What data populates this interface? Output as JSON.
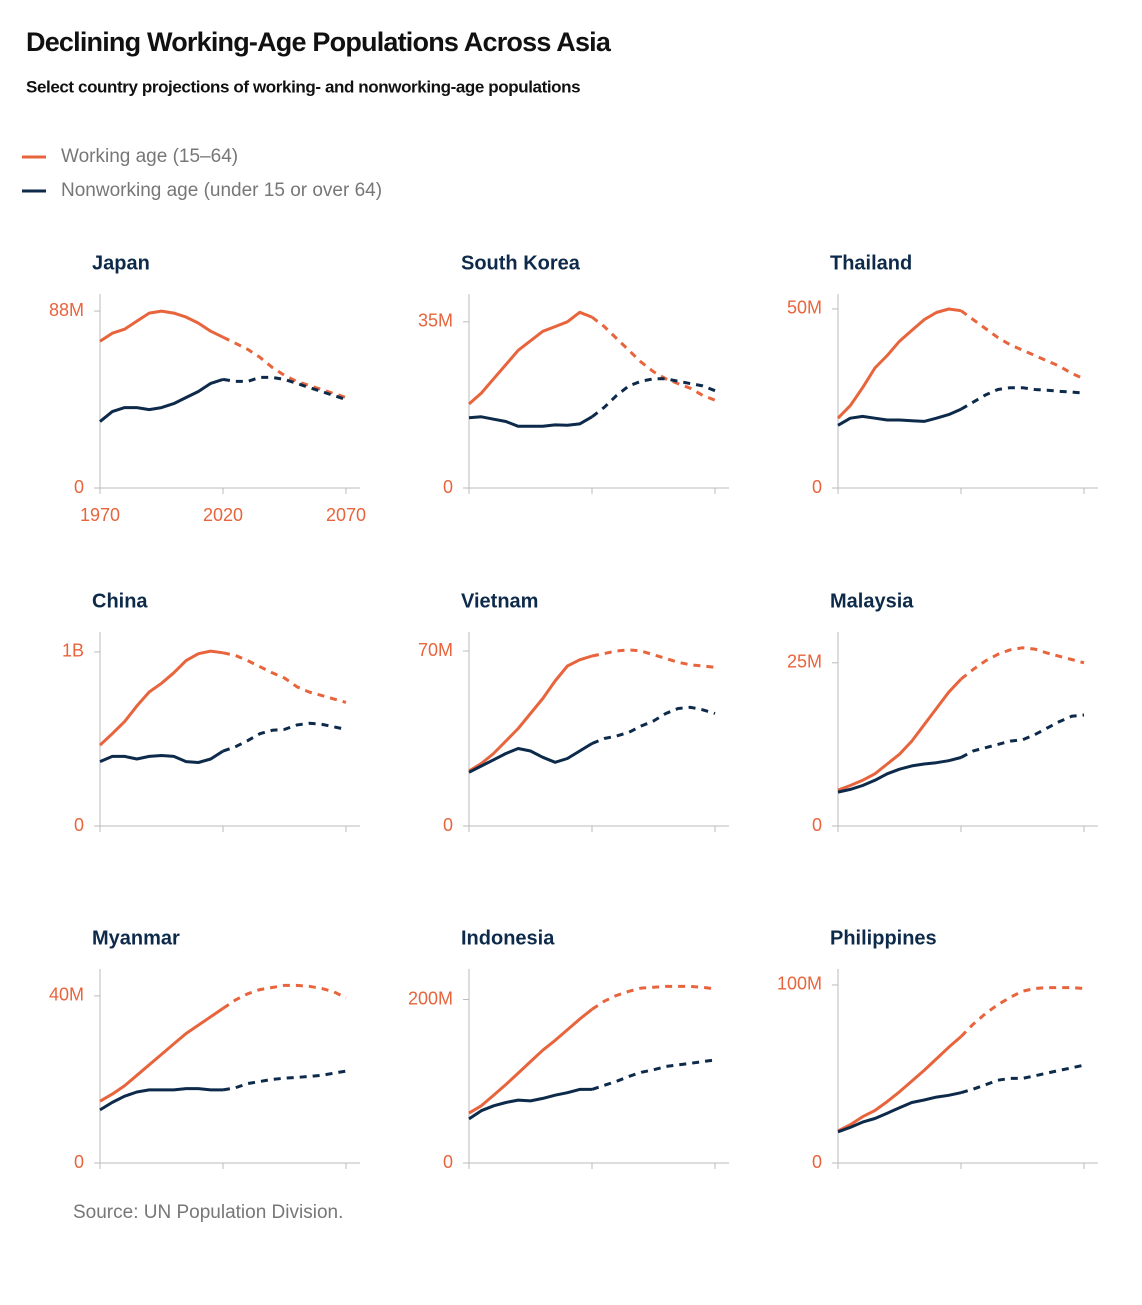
{
  "title": "Declining Working-Age Populations Across Asia",
  "subtitle": "Select country projections of working- and nonworking-age populations",
  "source": "Source: UN Population Division.",
  "chart_data": [
    {
      "type": "line",
      "title": "Japan",
      "projected_from": 2020,
      "xtick_labels": true,
      "x": [
        1970,
        1975,
        1980,
        1985,
        1990,
        1995,
        2000,
        2005,
        2010,
        2015,
        2020,
        2025,
        2030,
        2035,
        2040,
        2045,
        2050,
        2055,
        2060,
        2065,
        2070
      ],
      "xlim": [
        1970,
        2070
      ],
      "xticks": [
        1970,
        2020,
        2070
      ],
      "ylim": [
        0,
        93.5
      ],
      "yticks": [
        0,
        {
          "value": 88,
          "label": "88M"
        }
      ],
      "series": [
        {
          "name": "Working age (15–64)",
          "color": "#e8643c",
          "values": [
            73,
            77,
            79,
            83,
            87,
            88,
            87,
            85,
            82,
            78,
            75,
            72,
            69,
            65,
            60,
            56,
            53,
            51,
            49,
            47,
            45
          ]
        },
        {
          "name": "Nonworking age (under 15 or over 64)",
          "color": "#0d2a4a",
          "values": [
            33,
            38,
            40,
            40,
            39,
            40,
            42,
            45,
            48,
            52,
            54,
            53,
            53,
            55,
            55,
            54,
            52,
            50,
            48,
            46,
            44
          ]
        }
      ]
    },
    {
      "type": "line",
      "title": "South Korea",
      "projected_from": 2020,
      "x": [
        1970,
        1975,
        1980,
        1985,
        1990,
        1995,
        2000,
        2005,
        2010,
        2015,
        2020,
        2025,
        2030,
        2035,
        2040,
        2045,
        2050,
        2055,
        2060,
        2065,
        2070
      ],
      "xlim": [
        1970,
        2070
      ],
      "xticks": [
        1970,
        2020,
        2070
      ],
      "ylim": [
        0,
        39.6
      ],
      "yticks": [
        0,
        {
          "value": 35,
          "label": "35M"
        }
      ],
      "series": [
        {
          "color": "#e8643c",
          "values": [
            17.7,
            20,
            23,
            26,
            29,
            31,
            33,
            34,
            35,
            37,
            36,
            34,
            31.5,
            29,
            26.5,
            24.5,
            23,
            22,
            21,
            19.5,
            18.5
          ]
        },
        {
          "color": "#0d2a4a",
          "values": [
            14.8,
            15,
            14.5,
            14,
            13,
            13,
            13,
            13.3,
            13.2,
            13.5,
            15,
            17,
            19.5,
            21.5,
            22.5,
            23,
            23,
            22.5,
            22,
            21.5,
            20.5
          ]
        }
      ]
    },
    {
      "type": "line",
      "title": "Thailand",
      "projected_from": 2020,
      "x": [
        1970,
        1975,
        1980,
        1985,
        1990,
        1995,
        2000,
        2005,
        2010,
        2015,
        2020,
        2025,
        2030,
        2035,
        2040,
        2045,
        2050,
        2055,
        2060,
        2065,
        2070
      ],
      "xlim": [
        1970,
        2070
      ],
      "xticks": [
        1970,
        2020,
        2070
      ],
      "ylim": [
        0,
        52.5
      ],
      "yticks": [
        0,
        {
          "value": 50,
          "label": "50M"
        }
      ],
      "series": [
        {
          "color": "#e8643c",
          "values": [
            19.5,
            23,
            28,
            33.5,
            37,
            41,
            44,
            47,
            49,
            50,
            49.5,
            47,
            44.5,
            42,
            40,
            38.5,
            37,
            35.5,
            34,
            32,
            30.5
          ]
        },
        {
          "color": "#0d2a4a",
          "values": [
            17.5,
            19.5,
            20,
            19.5,
            19,
            19,
            18.8,
            18.6,
            19.5,
            20.5,
            22,
            24,
            26,
            27.5,
            28,
            28,
            27.5,
            27.3,
            27,
            26.8,
            26.5
          ]
        }
      ]
    },
    {
      "type": "line",
      "title": "China",
      "projected_from": 2020,
      "x": [
        1970,
        1975,
        1980,
        1985,
        1990,
        1995,
        2000,
        2005,
        2010,
        2015,
        2020,
        2025,
        2030,
        2035,
        2040,
        2045,
        2050,
        2055,
        2060,
        2065,
        2070
      ],
      "xlim": [
        1970,
        2070
      ],
      "xticks": [
        1970,
        2020,
        2070
      ],
      "ylim": [
        0,
        1080
      ],
      "yticks": [
        0,
        {
          "value": 1000,
          "label": "1B"
        }
      ],
      "series": [
        {
          "color": "#e8643c",
          "values": [
            465,
            530,
            600,
            690,
            770,
            820,
            880,
            950,
            990,
            1005,
            995,
            980,
            950,
            915,
            880,
            850,
            800,
            770,
            750,
            730,
            710
          ]
        },
        {
          "color": "#0d2a4a",
          "values": [
            370,
            400,
            400,
            385,
            400,
            405,
            400,
            370,
            365,
            385,
            430,
            455,
            490,
            530,
            550,
            555,
            580,
            590,
            585,
            570,
            555
          ]
        }
      ]
    },
    {
      "type": "line",
      "title": "Vietnam",
      "projected_from": 2020,
      "x": [
        1970,
        1975,
        1980,
        1985,
        1990,
        1995,
        2000,
        2005,
        2010,
        2015,
        2020,
        2025,
        2030,
        2035,
        2040,
        2045,
        2050,
        2055,
        2060,
        2065,
        2070
      ],
      "xlim": [
        1970,
        2070
      ],
      "xticks": [
        1970,
        2020,
        2070
      ],
      "ylim": [
        0,
        75.2
      ],
      "yticks": [
        0,
        {
          "value": 70,
          "label": "70M"
        }
      ],
      "series": [
        {
          "color": "#e8643c",
          "values": [
            22,
            25,
            29,
            34,
            39,
            45,
            51,
            58,
            64,
            66.5,
            68,
            69,
            70,
            70.5,
            70,
            68.5,
            67,
            65.5,
            64.5,
            64,
            63.5
          ]
        },
        {
          "color": "#0d2a4a",
          "values": [
            21.5,
            24,
            26.5,
            29,
            31,
            30,
            27.5,
            25.5,
            27,
            30,
            33,
            35,
            36,
            37.5,
            40,
            42,
            45,
            47,
            47.5,
            46.5,
            45
          ]
        }
      ]
    },
    {
      "type": "line",
      "title": "Malaysia",
      "projected_from": 2020,
      "x": [
        1970,
        1975,
        1980,
        1985,
        1990,
        1995,
        2000,
        2005,
        2010,
        2015,
        2020,
        2025,
        2030,
        2035,
        2040,
        2045,
        2050,
        2055,
        2060,
        2065,
        2070
      ],
      "xlim": [
        1970,
        2070
      ],
      "xticks": [
        1970,
        2020,
        2070
      ],
      "ylim": [
        0,
        28.8
      ],
      "yticks": [
        0,
        {
          "value": 25,
          "label": "25M"
        }
      ],
      "series": [
        {
          "color": "#e8643c",
          "values": [
            5.5,
            6.2,
            7,
            8,
            9.5,
            11,
            13,
            15.5,
            18,
            20.5,
            22.5,
            24,
            25.3,
            26.3,
            27,
            27.3,
            27.1,
            26.5,
            26,
            25.5,
            25
          ]
        },
        {
          "color": "#0d2a4a",
          "values": [
            5.2,
            5.6,
            6.2,
            7,
            8,
            8.7,
            9.2,
            9.5,
            9.7,
            10,
            10.5,
            11.5,
            12,
            12.5,
            13,
            13.2,
            14,
            15,
            16,
            16.8,
            17
          ]
        }
      ]
    },
    {
      "type": "line",
      "title": "Myanmar",
      "projected_from": 2020,
      "x": [
        1970,
        1975,
        1980,
        1985,
        1990,
        1995,
        2000,
        2005,
        2010,
        2015,
        2020,
        2025,
        2030,
        2035,
        2040,
        2045,
        2050,
        2055,
        2060,
        2065,
        2070
      ],
      "xlim": [
        1970,
        2070
      ],
      "xticks": [
        1970,
        2020,
        2070
      ],
      "ylim": [
        0,
        45
      ],
      "yticks": [
        0,
        {
          "value": 40,
          "label": "40M"
        }
      ],
      "series": [
        {
          "color": "#e8643c",
          "values": [
            14.8,
            16.5,
            18.5,
            21,
            23.5,
            26,
            28.5,
            31,
            33,
            35,
            37,
            39,
            40.5,
            41.5,
            42,
            42.5,
            42.5,
            42.3,
            41.8,
            41,
            39.5
          ]
        },
        {
          "color": "#0d2a4a",
          "values": [
            12.7,
            14.5,
            16,
            17,
            17.5,
            17.5,
            17.5,
            17.8,
            17.8,
            17.5,
            17.5,
            18,
            19,
            19.5,
            20,
            20.3,
            20.5,
            20.7,
            21,
            21.5,
            22
          ]
        }
      ]
    },
    {
      "type": "line",
      "title": "Indonesia",
      "projected_from": 2020,
      "x": [
        1970,
        1975,
        1980,
        1985,
        1990,
        1995,
        2000,
        2005,
        2010,
        2015,
        2020,
        2025,
        2030,
        2035,
        2040,
        2045,
        2050,
        2055,
        2060,
        2065,
        2070
      ],
      "xlim": [
        1970,
        2070
      ],
      "xticks": [
        1970,
        2020,
        2070
      ],
      "ylim": [
        0,
        230
      ],
      "yticks": [
        0,
        {
          "value": 200,
          "label": "200M"
        }
      ],
      "series": [
        {
          "color": "#e8643c",
          "values": [
            61,
            70,
            83,
            96,
            110,
            124,
            138,
            150,
            163,
            176,
            188,
            198,
            205,
            210,
            214,
            215,
            216,
            216,
            216,
            215,
            213
          ]
        },
        {
          "color": "#0d2a4a",
          "values": [
            54,
            64,
            70,
            74,
            77,
            76,
            79,
            83,
            86,
            90,
            90,
            95,
            100,
            106,
            111,
            114,
            118,
            120,
            122,
            124,
            126
          ]
        }
      ]
    },
    {
      "type": "line",
      "title": "Philippines",
      "projected_from": 2020,
      "x": [
        1970,
        1975,
        1980,
        1985,
        1990,
        1995,
        2000,
        2005,
        2010,
        2015,
        2020,
        2025,
        2030,
        2035,
        2040,
        2045,
        2050,
        2055,
        2060,
        2065,
        2070
      ],
      "xlim": [
        1970,
        2070
      ],
      "xticks": [
        1970,
        2020,
        2070
      ],
      "ylim": [
        0,
        105.6
      ],
      "yticks": [
        0,
        {
          "value": 100,
          "label": "100M"
        }
      ],
      "series": [
        {
          "color": "#e8643c",
          "values": [
            18,
            21.5,
            26,
            29.5,
            34.5,
            40,
            46,
            52,
            58.5,
            65,
            71,
            78,
            84,
            89,
            93,
            96.5,
            98,
            98.5,
            98.5,
            98.5,
            98
          ]
        },
        {
          "color": "#0d2a4a",
          "values": [
            17.5,
            20,
            23,
            25,
            28,
            31,
            34,
            35.4,
            37,
            38,
            39.5,
            41.5,
            44,
            46.5,
            47.5,
            47.5,
            49,
            50.5,
            52,
            53.5,
            55
          ]
        }
      ]
    }
  ]
}
